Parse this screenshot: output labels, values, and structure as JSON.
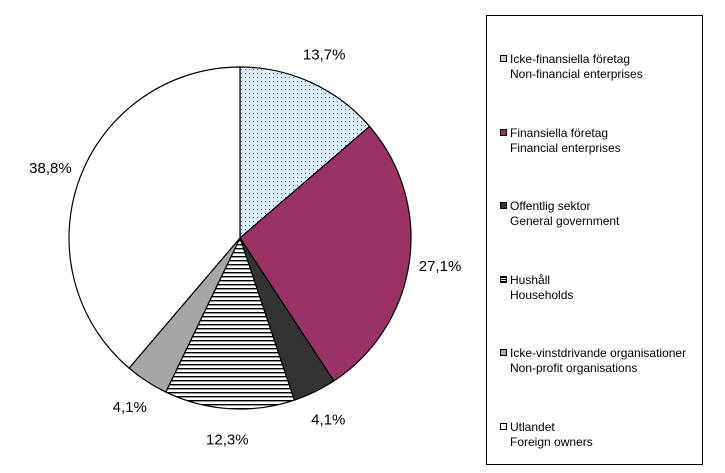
{
  "chart_data": {
    "type": "pie",
    "title": "",
    "start_angle_deg": 0,
    "direction": "clockwise",
    "slices": [
      {
        "label_sv": "Icke-finansiella företag",
        "label_en": "Non-financial enterprises",
        "value": 13.7,
        "display": "13,7%",
        "fill": "dots",
        "color": "#ddeeff"
      },
      {
        "label_sv": "Finansiella företag",
        "label_en": "Financial enterprises",
        "value": 27.1,
        "display": "27,1%",
        "fill": "solid",
        "color": "#993366"
      },
      {
        "label_sv": "Offentlig sektor",
        "label_en": "General government",
        "value": 4.1,
        "display": "4,1%",
        "fill": "solid",
        "color": "#333333"
      },
      {
        "label_sv": "Hushåll",
        "label_en": "Households",
        "value": 12.3,
        "display": "12,3%",
        "fill": "hlines",
        "color": "#ffffff"
      },
      {
        "label_sv": "Icke-vinstdrivande organisationer",
        "label_en": "Non-profit organisations",
        "value": 4.1,
        "display": "4,1%",
        "fill": "solid",
        "color": "#a6a6a6"
      },
      {
        "label_sv": "Utlandet",
        "label_en": "Foreign owners",
        "value": 38.8,
        "display": "38,8%",
        "fill": "solid",
        "color": "#ffffff"
      }
    ],
    "legend_position": "right"
  }
}
